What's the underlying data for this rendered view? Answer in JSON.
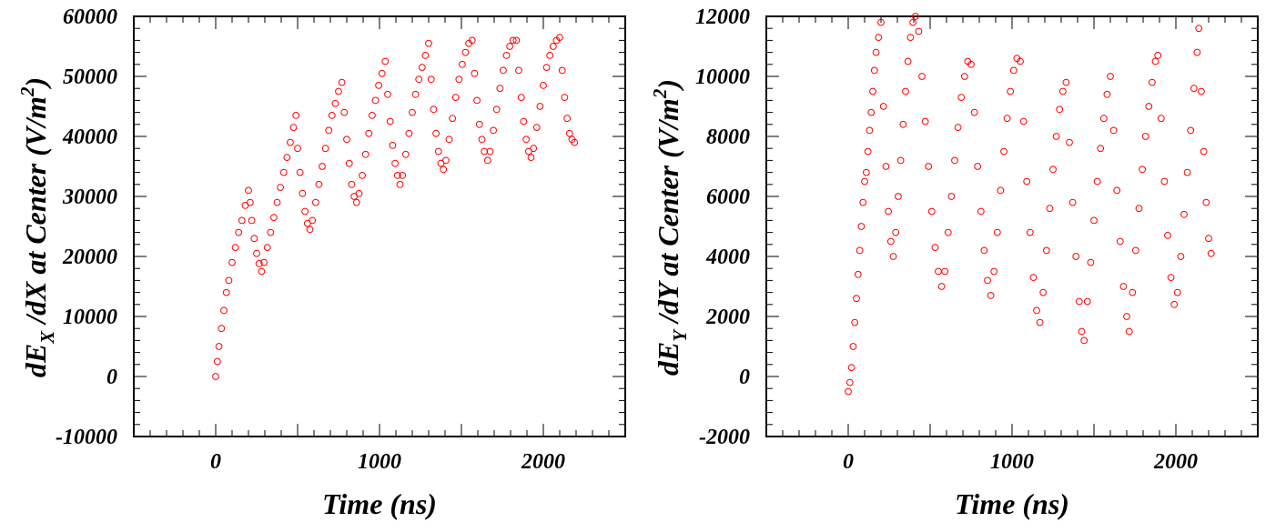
{
  "chart_data": [
    {
      "type": "scatter",
      "xlabel": "Time (ns)",
      "ylabel": {
        "prefix": "dE",
        "subscript": "X",
        "middle": " /dX at Center (V/m",
        "superscript": "2",
        "suffix": ")"
      },
      "xlim": [
        -500,
        2500
      ],
      "ylim": [
        -10000,
        60000
      ],
      "xticks": [
        "0",
        "1000",
        "2000"
      ],
      "xtick_values": [
        0,
        1000,
        2000
      ],
      "yticks": [
        "-10000",
        "0",
        "10000",
        "20000",
        "30000",
        "40000",
        "50000",
        "60000"
      ],
      "ytick_values": [
        -10000,
        0,
        10000,
        20000,
        30000,
        40000,
        50000,
        60000
      ],
      "marker": "open-circle",
      "marker_color": "#ff0000",
      "series": [
        {
          "points": [
            [
              0,
              0
            ],
            [
              10,
              2500
            ],
            [
              20,
              5000
            ],
            [
              35,
              8000
            ],
            [
              50,
              11000
            ],
            [
              65,
              14000
            ],
            [
              80,
              16000
            ],
            [
              100,
              19000
            ],
            [
              120,
              21500
            ],
            [
              140,
              24000
            ],
            [
              160,
              26000
            ],
            [
              180,
              28500
            ],
            [
              200,
              31000
            ],
            [
              210,
              29000
            ],
            [
              220,
              26000
            ],
            [
              235,
              23000
            ],
            [
              250,
              20500
            ],
            [
              265,
              18800
            ],
            [
              280,
              17500
            ],
            [
              295,
              19000
            ],
            [
              315,
              21500
            ],
            [
              335,
              24000
            ],
            [
              355,
              26500
            ],
            [
              375,
              29000
            ],
            [
              395,
              31500
            ],
            [
              415,
              34000
            ],
            [
              435,
              36500
            ],
            [
              455,
              39000
            ],
            [
              475,
              41500
            ],
            [
              490,
              43500
            ],
            [
              500,
              38000
            ],
            [
              515,
              34000
            ],
            [
              530,
              30500
            ],
            [
              545,
              27500
            ],
            [
              560,
              25500
            ],
            [
              575,
              24500
            ],
            [
              590,
              26000
            ],
            [
              610,
              29000
            ],
            [
              630,
              32000
            ],
            [
              650,
              35000
            ],
            [
              670,
              38000
            ],
            [
              690,
              41000
            ],
            [
              710,
              43500
            ],
            [
              730,
              45500
            ],
            [
              750,
              47500
            ],
            [
              770,
              49000
            ],
            [
              785,
              44000
            ],
            [
              800,
              39500
            ],
            [
              815,
              35500
            ],
            [
              830,
              32000
            ],
            [
              845,
              30000
            ],
            [
              860,
              29000
            ],
            [
              875,
              30500
            ],
            [
              895,
              33500
            ],
            [
              915,
              37000
            ],
            [
              935,
              40500
            ],
            [
              955,
              43500
            ],
            [
              975,
              46000
            ],
            [
              995,
              48500
            ],
            [
              1015,
              50500
            ],
            [
              1035,
              52500
            ],
            [
              1050,
              47000
            ],
            [
              1065,
              42500
            ],
            [
              1080,
              38500
            ],
            [
              1095,
              35500
            ],
            [
              1110,
              33500
            ],
            [
              1125,
              32000
            ],
            [
              1140,
              33500
            ],
            [
              1160,
              37000
            ],
            [
              1180,
              40500
            ],
            [
              1200,
              44000
            ],
            [
              1220,
              47000
            ],
            [
              1240,
              49500
            ],
            [
              1260,
              51500
            ],
            [
              1280,
              53500
            ],
            [
              1300,
              55500
            ],
            [
              1315,
              49500
            ],
            [
              1330,
              44500
            ],
            [
              1345,
              40500
            ],
            [
              1360,
              37500
            ],
            [
              1375,
              35500
            ],
            [
              1390,
              34500
            ],
            [
              1405,
              36000
            ],
            [
              1425,
              39500
            ],
            [
              1445,
              43000
            ],
            [
              1465,
              46500
            ],
            [
              1485,
              49500
            ],
            [
              1505,
              52000
            ],
            [
              1525,
              54000
            ],
            [
              1545,
              55500
            ],
            [
              1565,
              56000
            ],
            [
              1580,
              50500
            ],
            [
              1595,
              46000
            ],
            [
              1610,
              42000
            ],
            [
              1625,
              39500
            ],
            [
              1640,
              37500
            ],
            [
              1660,
              36000
            ],
            [
              1675,
              37500
            ],
            [
              1695,
              41000
            ],
            [
              1715,
              44500
            ],
            [
              1735,
              48000
            ],
            [
              1755,
              51000
            ],
            [
              1775,
              53500
            ],
            [
              1795,
              55000
            ],
            [
              1815,
              56000
            ],
            [
              1835,
              56000
            ],
            [
              1850,
              51000
            ],
            [
              1865,
              46500
            ],
            [
              1880,
              42500
            ],
            [
              1895,
              39500
            ],
            [
              1910,
              37500
            ],
            [
              1925,
              36500
            ],
            [
              1940,
              38000
            ],
            [
              1960,
              41500
            ],
            [
              1980,
              45000
            ],
            [
              2000,
              48500
            ],
            [
              2020,
              51500
            ],
            [
              2040,
              53500
            ],
            [
              2060,
              55000
            ],
            [
              2080,
              56000
            ],
            [
              2100,
              56500
            ],
            [
              2115,
              51000
            ],
            [
              2130,
              46500
            ],
            [
              2145,
              43000
            ],
            [
              2160,
              40500
            ],
            [
              2175,
              39500
            ],
            [
              2190,
              39000
            ]
          ]
        }
      ]
    },
    {
      "type": "scatter",
      "xlabel": "Time (ns)",
      "ylabel": {
        "prefix": "dE",
        "subscript": "Y",
        "middle": " /dY at Center (V/m",
        "superscript": "2",
        "suffix": ")"
      },
      "xlim": [
        -500,
        2500
      ],
      "ylim": [
        -2000,
        12000
      ],
      "xticks": [
        "0",
        "1000",
        "2000"
      ],
      "xtick_values": [
        0,
        1000,
        2000
      ],
      "yticks": [
        "-2000",
        "0",
        "2000",
        "4000",
        "6000",
        "8000",
        "10000",
        "12000"
      ],
      "ytick_values": [
        -2000,
        0,
        2000,
        4000,
        6000,
        8000,
        10000,
        12000
      ],
      "marker": "open-circle",
      "marker_color": "#ff0000",
      "series": [
        {
          "points": [
            [
              0,
              -500
            ],
            [
              10,
              -200
            ],
            [
              20,
              300
            ],
            [
              30,
              1000
            ],
            [
              40,
              1800
            ],
            [
              50,
              2600
            ],
            [
              60,
              3400
            ],
            [
              70,
              4200
            ],
            [
              80,
              5000
            ],
            [
              90,
              5800
            ],
            [
              100,
              6500
            ],
            [
              110,
              6800
            ],
            [
              120,
              7500
            ],
            [
              130,
              8200
            ],
            [
              140,
              8800
            ],
            [
              150,
              9500
            ],
            [
              160,
              10200
            ],
            [
              170,
              10800
            ],
            [
              185,
              11300
            ],
            [
              200,
              11800
            ],
            [
              215,
              9000
            ],
            [
              230,
              7000
            ],
            [
              245,
              5500
            ],
            [
              260,
              4500
            ],
            [
              275,
              4000
            ],
            [
              290,
              4800
            ],
            [
              305,
              6000
            ],
            [
              320,
              7200
            ],
            [
              335,
              8400
            ],
            [
              350,
              9500
            ],
            [
              365,
              10500
            ],
            [
              380,
              11300
            ],
            [
              395,
              11800
            ],
            [
              410,
              12000
            ],
            [
              430,
              11500
            ],
            [
              450,
              10000
            ],
            [
              470,
              8500
            ],
            [
              490,
              7000
            ],
            [
              510,
              5500
            ],
            [
              530,
              4300
            ],
            [
              550,
              3500
            ],
            [
              570,
              3000
            ],
            [
              590,
              3500
            ],
            [
              610,
              4800
            ],
            [
              630,
              6000
            ],
            [
              650,
              7200
            ],
            [
              670,
              8300
            ],
            [
              690,
              9300
            ],
            [
              710,
              10000
            ],
            [
              730,
              10500
            ],
            [
              750,
              10400
            ],
            [
              770,
              8800
            ],
            [
              790,
              7000
            ],
            [
              810,
              5500
            ],
            [
              830,
              4200
            ],
            [
              850,
              3200
            ],
            [
              870,
              2700
            ],
            [
              890,
              3500
            ],
            [
              910,
              4800
            ],
            [
              930,
              6200
            ],
            [
              950,
              7500
            ],
            [
              970,
              8600
            ],
            [
              990,
              9500
            ],
            [
              1010,
              10200
            ],
            [
              1030,
              10600
            ],
            [
              1050,
              10500
            ],
            [
              1070,
              8500
            ],
            [
              1090,
              6500
            ],
            [
              1110,
              4800
            ],
            [
              1130,
              3300
            ],
            [
              1150,
              2200
            ],
            [
              1170,
              1800
            ],
            [
              1190,
              2800
            ],
            [
              1210,
              4200
            ],
            [
              1230,
              5600
            ],
            [
              1250,
              6900
            ],
            [
              1270,
              8000
            ],
            [
              1290,
              8900
            ],
            [
              1310,
              9500
            ],
            [
              1330,
              9800
            ],
            [
              1350,
              7800
            ],
            [
              1370,
              5800
            ],
            [
              1390,
              4000
            ],
            [
              1410,
              2500
            ],
            [
              1425,
              1500
            ],
            [
              1440,
              1200
            ],
            [
              1460,
              2500
            ],
            [
              1480,
              3800
            ],
            [
              1500,
              5200
            ],
            [
              1520,
              6500
            ],
            [
              1540,
              7600
            ],
            [
              1560,
              8600
            ],
            [
              1580,
              9400
            ],
            [
              1600,
              10000
            ],
            [
              1620,
              8200
            ],
            [
              1640,
              6200
            ],
            [
              1660,
              4500
            ],
            [
              1680,
              3000
            ],
            [
              1700,
              2000
            ],
            [
              1715,
              1500
            ],
            [
              1735,
              2800
            ],
            [
              1755,
              4200
            ],
            [
              1775,
              5600
            ],
            [
              1795,
              6900
            ],
            [
              1815,
              8000
            ],
            [
              1835,
              9000
            ],
            [
              1855,
              9800
            ],
            [
              1875,
              10500
            ],
            [
              1890,
              10700
            ],
            [
              1910,
              8600
            ],
            [
              1930,
              6500
            ],
            [
              1950,
              4700
            ],
            [
              1970,
              3300
            ],
            [
              1990,
              2400
            ],
            [
              2010,
              2800
            ],
            [
              2030,
              4000
            ],
            [
              2050,
              5400
            ],
            [
              2070,
              6800
            ],
            [
              2090,
              8200
            ],
            [
              2110,
              9600
            ],
            [
              2130,
              10800
            ],
            [
              2140,
              11600
            ],
            [
              2155,
              9500
            ],
            [
              2170,
              7500
            ],
            [
              2185,
              5800
            ],
            [
              2200,
              4600
            ],
            [
              2215,
              4100
            ]
          ]
        }
      ]
    }
  ]
}
